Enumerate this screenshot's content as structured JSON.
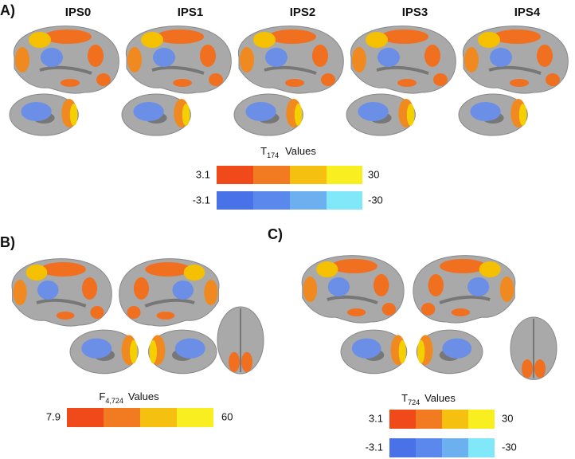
{
  "panel_a": {
    "label": "A)",
    "columns": [
      "IPS0",
      "IPS1",
      "IPS2",
      "IPS3",
      "IPS4"
    ],
    "legend": {
      "stat": "T",
      "subscript": "174",
      "suffix": "Values",
      "positive": {
        "min": "3.1",
        "max": "30"
      },
      "negative": {
        "min": "-3.1",
        "max": "-30"
      }
    }
  },
  "panel_b": {
    "label": "B)",
    "legend": {
      "stat": "F",
      "subscript": "4,724",
      "suffix": "Values",
      "positive": {
        "min": "7.9",
        "max": "60"
      }
    }
  },
  "panel_c": {
    "label": "C)",
    "legend": {
      "stat": "T",
      "subscript": "724",
      "suffix": "Values",
      "positive": {
        "min": "3.1",
        "max": "30"
      },
      "negative": {
        "min": "-3.1",
        "max": "-30"
      }
    }
  }
}
